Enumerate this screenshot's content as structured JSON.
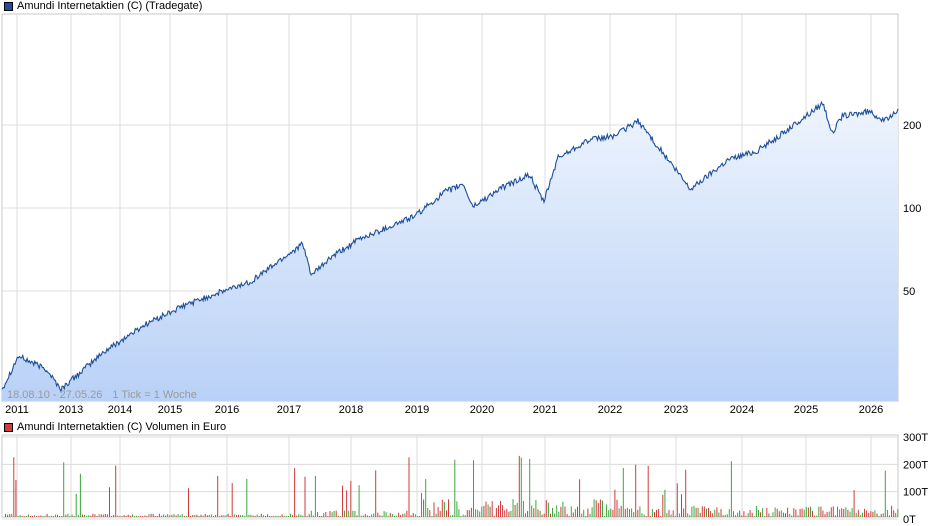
{
  "legend": {
    "price": "Amundi Internetaktien (C) (Tradegate)",
    "volume": "Amundi Internetaktien (C) Volumen in Euro"
  },
  "colors": {
    "price_line": "#1c4f9c",
    "price_swatch": "#1c4f9c",
    "volume_swatch": "#d23b3b",
    "vol_green": "#3aa83a",
    "vol_red": "#d23b3b"
  },
  "range_text": "18.08.10 - 27.05.26",
  "tick_text": "1 Tick = 1 Woche",
  "chart_data": [
    {
      "type": "area",
      "series_name": "Amundi Internetaktien (C) (Tradegate)",
      "y_scale": "log",
      "x_ticks": [
        "2011",
        "2013",
        "2014",
        "2015",
        "2016",
        "2017",
        "2018",
        "2019",
        "2020",
        "2021",
        "2022",
        "2023",
        "2024",
        "2025",
        "2026"
      ],
      "y_ticks": [
        200,
        100,
        50
      ],
      "x": [
        "2010-08-18",
        "2010-12",
        "2011-06",
        "2011-09",
        "2012-06",
        "2013-03",
        "2013-12",
        "2014-06",
        "2015-01",
        "2015-08",
        "2015-12",
        "2016-02",
        "2016-06",
        "2016-12",
        "2017-06",
        "2017-12",
        "2018-06",
        "2018-10",
        "2018-12",
        "2019-06",
        "2019-12",
        "2020-03",
        "2020-06",
        "2020-12",
        "2021-06",
        "2021-11",
        "2022-06",
        "2022-10",
        "2023-06",
        "2023-12",
        "2024-06",
        "2024-12",
        "2025-02",
        "2025-04",
        "2025-06",
        "2025-12",
        "2026-03",
        "2026-05-27"
      ],
      "values": [
        22,
        29,
        26,
        22,
        30,
        38,
        45,
        49,
        54,
        66,
        74,
        57,
        66,
        77,
        85,
        94,
        114,
        122,
        101,
        118,
        132,
        105,
        152,
        175,
        183,
        207,
        144,
        117,
        150,
        161,
        189,
        226,
        241,
        186,
        215,
        224,
        206,
        229
      ]
    },
    {
      "type": "bar",
      "series_name": "Amundi Internetaktien (C) Volumen in Euro",
      "y_ticks": [
        "300T",
        "200T",
        "100T",
        "0T"
      ],
      "ylim": [
        0,
        300000
      ]
    }
  ]
}
